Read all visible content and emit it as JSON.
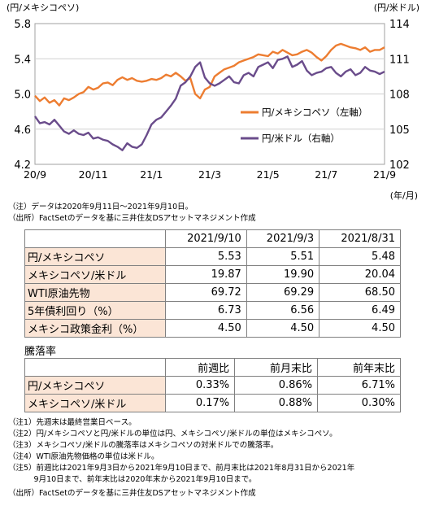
{
  "chart_data": {
    "type": "line",
    "left_axis_unit": "(円/メキシコペソ)",
    "right_axis_unit": "(円/米ドル)",
    "x_unit": "(年/月)",
    "left_ylim": [
      4.2,
      5.8
    ],
    "left_ticks": [
      "5.8",
      "5.4",
      "5.0",
      "4.6",
      "4.2"
    ],
    "right_ylim": [
      102,
      114
    ],
    "right_ticks": [
      "114",
      "111",
      "108",
      "105",
      "102"
    ],
    "x_ticks": [
      "20/9",
      "20/11",
      "21/1",
      "21/3",
      "21/5",
      "21/7",
      "21/9"
    ],
    "series": [
      {
        "name": "円/メキシコペソ（左軸）",
        "axis": "left",
        "color": "#ED7D31",
        "values": [
          4.98,
          4.92,
          4.96,
          4.9,
          4.93,
          4.87,
          4.95,
          4.93,
          4.96,
          5.0,
          5.02,
          5.08,
          5.05,
          5.07,
          5.12,
          5.13,
          5.1,
          5.16,
          5.19,
          5.16,
          5.18,
          5.15,
          5.14,
          5.15,
          5.17,
          5.16,
          5.18,
          5.22,
          5.2,
          5.24,
          5.2,
          5.15,
          5.18,
          5.0,
          4.95,
          5.05,
          5.08,
          5.2,
          5.24,
          5.28,
          5.3,
          5.32,
          5.36,
          5.38,
          5.4,
          5.42,
          5.45,
          5.44,
          5.43,
          5.48,
          5.46,
          5.5,
          5.47,
          5.44,
          5.45,
          5.48,
          5.5,
          5.47,
          5.42,
          5.38,
          5.43,
          5.5,
          5.55,
          5.57,
          5.55,
          5.53,
          5.52,
          5.5,
          5.53,
          5.48,
          5.5,
          5.5,
          5.53
        ]
      },
      {
        "name": "円/米ドル（右軸）",
        "axis": "right",
        "color": "#6A4C8B",
        "values": [
          106.1,
          105.5,
          105.6,
          105.4,
          105.8,
          105.3,
          104.8,
          104.6,
          104.9,
          104.6,
          104.5,
          104.7,
          104.2,
          104.3,
          104.1,
          104.0,
          103.7,
          103.5,
          103.2,
          103.8,
          103.5,
          103.4,
          103.7,
          104.5,
          105.4,
          105.8,
          106.0,
          106.5,
          107.0,
          107.6,
          108.7,
          109.0,
          109.5,
          110.3,
          110.7,
          109.4,
          108.9,
          108.7,
          108.9,
          109.2,
          109.5,
          109.0,
          108.9,
          109.6,
          109.8,
          109.5,
          110.3,
          110.5,
          110.7,
          110.2,
          110.9,
          111.0,
          111.2,
          110.3,
          110.5,
          110.8,
          110.0,
          109.6,
          109.8,
          109.9,
          110.2,
          110.3,
          109.8,
          109.5,
          109.9,
          110.1,
          109.6,
          109.8,
          110.3,
          110.0,
          109.9,
          109.7,
          109.9
        ]
      }
    ]
  },
  "notes_top": [
    "（注）データは2020年9月11日～2021年9月10日。",
    "（出所）FactSetのデータを基に三井住友DSアセットマネジメント作成"
  ],
  "table1": {
    "headers": [
      "2021/9/10",
      "2021/9/3",
      "2021/8/31"
    ],
    "rows": [
      {
        "label": "円/メキシコペソ",
        "values": [
          "5.53",
          "5.51",
          "5.48"
        ]
      },
      {
        "label": "メキシコペソ/米ドル",
        "values": [
          "19.87",
          "19.90",
          "20.04"
        ]
      },
      {
        "label": "WTI原油先物",
        "values": [
          "69.72",
          "69.29",
          "68.50"
        ]
      },
      {
        "label": "5年債利回り（%）",
        "values": [
          "6.73",
          "6.56",
          "6.49"
        ]
      },
      {
        "label": "メキシコ政策金利（%）",
        "values": [
          "4.50",
          "4.50",
          "4.50"
        ]
      }
    ]
  },
  "table2": {
    "title": "騰落率",
    "headers": [
      "前週比",
      "前月末比",
      "前年末比"
    ],
    "rows": [
      {
        "label": "円/メキシコペソ",
        "values": [
          "0.33%",
          "0.86%",
          "6.71%"
        ]
      },
      {
        "label": "メキシコペソ/米ドル",
        "values": [
          "0.17%",
          "0.88%",
          "0.30%"
        ]
      }
    ]
  },
  "notes_bottom": [
    "（注1）先週末は最終営業日ベース。",
    "（注2）円/メキシコペソと円/米ドルの単位は円、メキシコペソ/米ドルの単位はメキシコペソ。",
    "（注3）メキシコペソ/米ドルの騰落率はメキシコペソの対米ドルでの騰落率。",
    "（注4）WTI原油先物価格の単位は米ドル。",
    "（注5）前週比は2021年9月3日から2021年9月10日まで、前月末比は2021年8月31日から2021年",
    "　　　 9月10日まで、前年末比は2020年末から2021年9月10日まで。",
    "（出所）FactSetのデータを基に三井住友DSアセットマネジメント作成"
  ]
}
